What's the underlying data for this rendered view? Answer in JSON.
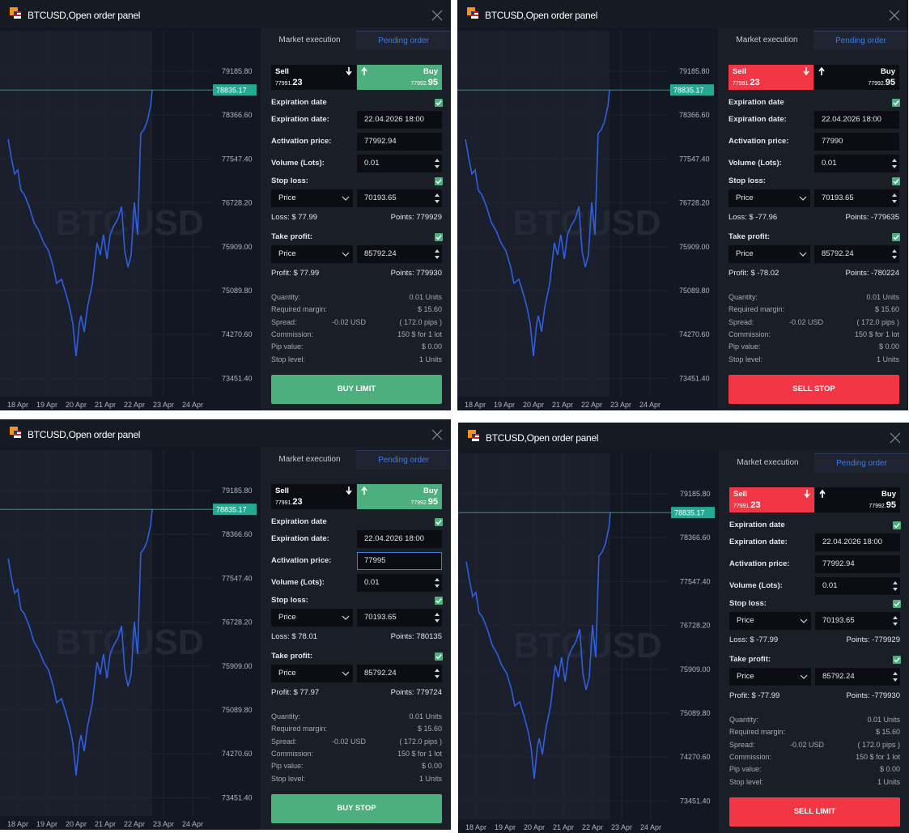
{
  "window_title": "BTCUSD,Open order panel",
  "tabs": [
    "Market execution",
    "Pending order"
  ],
  "sell_label": "Sell",
  "buy_label": "Buy",
  "sell_price": {
    "lead": "77991.",
    "tail": "23"
  },
  "buy_price": {
    "lead": "77992.",
    "tail": "95"
  },
  "labels": {
    "expiration_toggle": "Expiration date",
    "expiration_date": "Expiration date:",
    "activation_price": "Activation price:",
    "volume": "Volume (Lots):",
    "stop_loss": "Stop loss:",
    "take_profit": "Take profit:"
  },
  "price_mode": "Price",
  "expiration_value": "22.04.2026 18:00",
  "volume": "0.01",
  "stop_loss_value": "70193.65",
  "take_profit_value": "85792.24",
  "info": [
    {
      "label": "Quantity:",
      "value": "0.01 Units"
    },
    {
      "label": "Required margin:",
      "value": "$ 15.60"
    },
    {
      "label": "Spread:",
      "detail": "-0.02 USD",
      "value": "( 172.0 pips )"
    },
    {
      "label": "Commission:",
      "value": "150 $ for 1 lot"
    },
    {
      "label": "Pip value:",
      "value": "$ 0.00"
    },
    {
      "label": "Stop level:",
      "value": "1 Units"
    }
  ],
  "panels": [
    {
      "side": "buy",
      "activation_price": "77992.94",
      "loss": "Loss: $ 77.99",
      "loss_points": "Points: 779929",
      "profit": "Profit: $ 77.99",
      "profit_points": "Points: 779930",
      "button": "BUY LIMIT",
      "activation_focused": false
    },
    {
      "side": "sell",
      "activation_price": "77990",
      "loss": "Loss: $ -77.96",
      "loss_points": "Points: -779635",
      "profit": "Profit: $ -78.02",
      "profit_points": "Points: -780224",
      "button": "SELL STOP",
      "activation_focused": false
    },
    {
      "side": "buy",
      "activation_price": "77995",
      "loss": "Loss: $ 78.01",
      "loss_points": "Points: 780135",
      "profit": "Profit: $ 77.97",
      "profit_points": "Points: 779724",
      "button": "BUY STOP",
      "activation_focused": true
    },
    {
      "side": "sell",
      "activation_price": "77992.94",
      "loss": "Loss: $ -77.99",
      "loss_points": "Points: -779929",
      "profit": "Profit: $ -77.99",
      "profit_points": "Points: -779930",
      "button": "SELL LIMIT",
      "activation_focused": false
    }
  ],
  "chart_data": {
    "type": "line",
    "watermark": "BTCUSD",
    "color": "#2f5fe0",
    "x": [
      17.67,
      17.78,
      17.89,
      18,
      18.11,
      18.22,
      18.39,
      18.56,
      18.72,
      18.89,
      19.06,
      19.22,
      19.33,
      19.5,
      19.67,
      19.78,
      19.89,
      20,
      20.11,
      20.17,
      20.28,
      20.39,
      20.56,
      20.72,
      20.83,
      20.94,
      21.06,
      21.17,
      21.28,
      21.44,
      21.56,
      21.67,
      21.78,
      21.89,
      22,
      22.11,
      22.22,
      22.33,
      22.44,
      22.56,
      22.61
    ],
    "values": [
      77916,
      77569,
      77267,
      77342,
      76964,
      76889,
      76662,
      76360,
      76209,
      75982,
      75831,
      75528,
      75226,
      75302,
      74999,
      74773,
      74470,
      73866,
      74470,
      74622,
      74319,
      74773,
      75226,
      75982,
      75755,
      76133,
      75680,
      76133,
      76284,
      76435,
      76662,
      75831,
      75528,
      75755,
      76738,
      76133,
      78022,
      78098,
      78249,
      78551,
      78835.17
    ],
    "last_price": 78835.17,
    "xlim": [
      17.39,
      24.61
    ],
    "ylim": [
      73110,
      79941
    ],
    "xticks": [
      {
        "value": 18,
        "label": "18 Apr"
      },
      {
        "value": 19,
        "label": "19 Apr"
      },
      {
        "value": 20,
        "label": "20 Apr"
      },
      {
        "value": 21,
        "label": "21 Apr"
      },
      {
        "value": 22,
        "label": "22 Apr"
      },
      {
        "value": 23,
        "label": "23 Apr"
      },
      {
        "value": 24,
        "label": "24 Apr"
      }
    ],
    "yticks": [
      {
        "value": 79185.8,
        "label": "79185.80"
      },
      {
        "value": 78366.6,
        "label": "78366.60"
      },
      {
        "value": 77547.4,
        "label": "77547.40"
      },
      {
        "value": 76728.2,
        "label": "76728.20"
      },
      {
        "value": 75909,
        "label": "75909.00"
      },
      {
        "value": 75089.8,
        "label": "75089.80"
      },
      {
        "value": 74270.6,
        "label": "74270.60"
      },
      {
        "value": 73451.4,
        "label": "73451.40"
      }
    ],
    "grid": true
  }
}
